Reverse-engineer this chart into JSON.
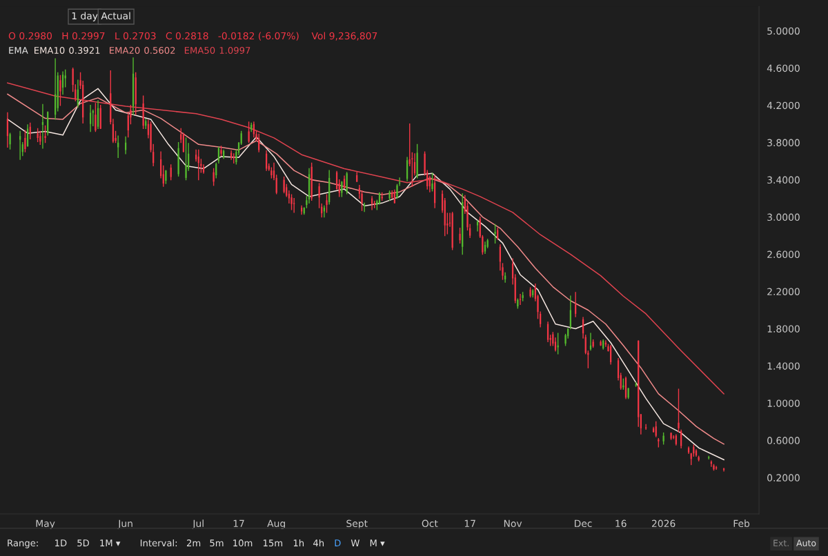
{
  "chart_data": {
    "type": "candlestick",
    "x": [
      "2025-04-16",
      "2025-04-17",
      "2025-04-21",
      "2025-04-22",
      "2025-04-23",
      "2025-04-24",
      "2025-04-25",
      "2025-04-28",
      "2025-04-29",
      "2025-04-30",
      "2025-05-01",
      "2025-05-02",
      "2025-05-05",
      "2025-05-06",
      "2025-05-07",
      "2025-05-08",
      "2025-05-09",
      "2025-05-12",
      "2025-05-13",
      "2025-05-14",
      "2025-05-15",
      "2025-05-16",
      "2025-05-19",
      "2025-05-20",
      "2025-05-21",
      "2025-05-22",
      "2025-05-23",
      "2025-05-27",
      "2025-05-28",
      "2025-05-29",
      "2025-05-30",
      "2025-06-02",
      "2025-06-03",
      "2025-06-04",
      "2025-06-05",
      "2025-06-06",
      "2025-06-09",
      "2025-06-10",
      "2025-06-11",
      "2025-06-12",
      "2025-06-13",
      "2025-06-16",
      "2025-06-17",
      "2025-06-18",
      "2025-06-20",
      "2025-06-23",
      "2025-06-24",
      "2025-06-25",
      "2025-06-26",
      "2025-06-27",
      "2025-06-30",
      "2025-07-01",
      "2025-07-02",
      "2025-07-03",
      "2025-07-07",
      "2025-07-08",
      "2025-07-09",
      "2025-07-10",
      "2025-07-11",
      "2025-07-14",
      "2025-07-15",
      "2025-07-16",
      "2025-07-17",
      "2025-07-18",
      "2025-07-21",
      "2025-07-22",
      "2025-07-23",
      "2025-07-24",
      "2025-07-25",
      "2025-07-28",
      "2025-07-29",
      "2025-07-30",
      "2025-07-31",
      "2025-08-01",
      "2025-08-04",
      "2025-08-05",
      "2025-08-06",
      "2025-08-07",
      "2025-08-08",
      "2025-08-11",
      "2025-08-12",
      "2025-08-13",
      "2025-08-14",
      "2025-08-15",
      "2025-08-18",
      "2025-08-19",
      "2025-08-20",
      "2025-08-21",
      "2025-08-22",
      "2025-08-25",
      "2025-08-26",
      "2025-08-27",
      "2025-08-28",
      "2025-08-29",
      "2025-09-02",
      "2025-09-03",
      "2025-09-04",
      "2025-09-05",
      "2025-09-08",
      "2025-09-09",
      "2025-09-10",
      "2025-09-11",
      "2025-09-12",
      "2025-09-15",
      "2025-09-16",
      "2025-09-17",
      "2025-09-18",
      "2025-09-19",
      "2025-09-22",
      "2025-09-23",
      "2025-09-24",
      "2025-09-25",
      "2025-09-26",
      "2025-09-29",
      "2025-09-30",
      "2025-10-01",
      "2025-10-02",
      "2025-10-03",
      "2025-10-06",
      "2025-10-07",
      "2025-10-08",
      "2025-10-09",
      "2025-10-10",
      "2025-10-13",
      "2025-10-14",
      "2025-10-15",
      "2025-10-16",
      "2025-10-17",
      "2025-10-20",
      "2025-10-21",
      "2025-10-22",
      "2025-10-23",
      "2025-10-24",
      "2025-10-27",
      "2025-10-28",
      "2025-10-29",
      "2025-10-30",
      "2025-10-31",
      "2025-11-03",
      "2025-11-04",
      "2025-11-05",
      "2025-11-06",
      "2025-11-07",
      "2025-11-10",
      "2025-11-11",
      "2025-11-12",
      "2025-11-13",
      "2025-11-14",
      "2025-11-17",
      "2025-11-18",
      "2025-11-19",
      "2025-11-20",
      "2025-11-21",
      "2025-11-24",
      "2025-11-25",
      "2025-11-26",
      "2025-11-28",
      "2025-12-01",
      "2025-12-02",
      "2025-12-03",
      "2025-12-04",
      "2025-12-05",
      "2025-12-08",
      "2025-12-09",
      "2025-12-10",
      "2025-12-11",
      "2025-12-12",
      "2025-12-15",
      "2025-12-16",
      "2025-12-17",
      "2025-12-18",
      "2025-12-19",
      "2025-12-22",
      "2025-12-23",
      "2025-12-24",
      "2025-12-26",
      "2025-12-29",
      "2025-12-30",
      "2025-12-31",
      "2026-01-02",
      "2026-01-05",
      "2026-01-06",
      "2026-01-07",
      "2026-01-08",
      "2026-01-09",
      "2026-01-12",
      "2026-01-13",
      "2026-01-14",
      "2026-01-15",
      "2026-01-16",
      "2026-01-20",
      "2026-01-21",
      "2026-01-22",
      "2026-01-23",
      "2026-01-26"
    ],
    "ohlc": [
      [
        4.05,
        4.12,
        3.75,
        3.87
      ],
      [
        3.78,
        3.9,
        3.73,
        3.89
      ],
      [
        3.83,
        3.92,
        3.62,
        3.87
      ],
      [
        3.7,
        3.8,
        3.66,
        3.78
      ],
      [
        3.85,
        3.93,
        3.7,
        3.73
      ],
      [
        3.76,
        3.99,
        3.76,
        3.95
      ],
      [
        3.97,
        4.01,
        3.84,
        3.89
      ],
      [
        3.9,
        3.95,
        3.81,
        3.85
      ],
      [
        3.87,
        3.92,
        3.78,
        3.81
      ],
      [
        3.99,
        4.21,
        3.74,
        4.02
      ],
      [
        3.87,
        3.98,
        3.8,
        3.85
      ],
      [
        3.9,
        4.13,
        3.88,
        4.13
      ],
      [
        4.1,
        4.7,
        4.05,
        4.32
      ],
      [
        4.17,
        4.55,
        4.14,
        4.52
      ],
      [
        4.47,
        4.52,
        4.2,
        4.35
      ],
      [
        4.39,
        4.56,
        4.32,
        4.53
      ],
      [
        4.49,
        4.58,
        4.4,
        4.52
      ],
      [
        4.59,
        4.6,
        4.35,
        4.42
      ],
      [
        4.37,
        4.42,
        4.25,
        4.27
      ],
      [
        4.2,
        4.47,
        4.18,
        4.37
      ],
      [
        4.47,
        4.55,
        4.38,
        4.41
      ],
      [
        4.42,
        4.46,
        4.01,
        4.07
      ],
      [
        4.0,
        4.2,
        3.92,
        4.12
      ],
      [
        4.12,
        4.15,
        3.98,
        4.14
      ],
      [
        4.1,
        4.22,
        3.92,
        3.93
      ],
      [
        3.97,
        4.25,
        3.95,
        4.17
      ],
      [
        4.17,
        4.2,
        3.95,
        3.95
      ],
      [
        4.33,
        4.57,
        4.0,
        4.02
      ],
      [
        4.0,
        4.05,
        3.8,
        3.81
      ],
      [
        3.85,
        3.92,
        3.8,
        3.82
      ],
      [
        3.75,
        3.87,
        3.64,
        3.8
      ],
      [
        3.72,
        3.86,
        3.68,
        3.8
      ],
      [
        4.09,
        4.12,
        3.86,
        3.93
      ],
      [
        4.15,
        4.2,
        4.0,
        4.07
      ],
      [
        4.19,
        4.71,
        4.1,
        4.54
      ],
      [
        4.5,
        4.55,
        4.1,
        4.21
      ],
      [
        4.22,
        4.3,
        3.95,
        3.98
      ],
      [
        3.98,
        4.05,
        3.95,
        4.03
      ],
      [
        4.0,
        4.04,
        3.85,
        3.88
      ],
      [
        4.0,
        4.02,
        3.7,
        3.72
      ],
      [
        3.7,
        3.78,
        3.55,
        3.58
      ],
      [
        3.62,
        3.7,
        3.42,
        3.44
      ],
      [
        3.46,
        3.55,
        3.33,
        3.36
      ],
      [
        3.39,
        3.5,
        3.36,
        3.5
      ],
      [
        3.53,
        3.56,
        3.4,
        3.43
      ],
      [
        3.46,
        3.8,
        3.44,
        3.74
      ],
      [
        3.89,
        3.95,
        3.8,
        3.83
      ],
      [
        3.89,
        3.9,
        3.7,
        3.7
      ],
      [
        3.42,
        3.85,
        3.4,
        3.56
      ],
      [
        3.52,
        3.79,
        3.5,
        3.68
      ],
      [
        3.67,
        3.72,
        3.6,
        3.62
      ],
      [
        3.65,
        3.72,
        3.4,
        3.58
      ],
      [
        3.57,
        3.62,
        3.48,
        3.55
      ],
      [
        3.54,
        3.56,
        3.47,
        3.48
      ],
      [
        3.48,
        3.52,
        3.34,
        3.38
      ],
      [
        3.45,
        3.58,
        3.42,
        3.57
      ],
      [
        3.6,
        3.75,
        3.58,
        3.74
      ],
      [
        3.72,
        3.76,
        3.66,
        3.68
      ],
      [
        3.64,
        3.72,
        3.63,
        3.71
      ],
      [
        3.69,
        3.71,
        3.62,
        3.64
      ],
      [
        3.65,
        3.68,
        3.58,
        3.63
      ],
      [
        3.59,
        3.72,
        3.57,
        3.7
      ],
      [
        3.69,
        3.8,
        3.67,
        3.8
      ],
      [
        3.79,
        3.92,
        3.78,
        3.9
      ],
      [
        3.92,
        4.02,
        3.8,
        3.81
      ],
      [
        3.94,
        4.01,
        3.92,
        3.99
      ],
      [
        4.0,
        4.02,
        3.86,
        3.89
      ],
      [
        3.89,
        3.92,
        3.82,
        3.83
      ],
      [
        3.85,
        3.89,
        3.7,
        3.72
      ],
      [
        3.68,
        3.71,
        3.5,
        3.52
      ],
      [
        3.55,
        3.57,
        3.5,
        3.51
      ],
      [
        3.5,
        3.53,
        3.42,
        3.45
      ],
      [
        3.5,
        3.58,
        3.4,
        3.42
      ],
      [
        3.42,
        3.45,
        3.25,
        3.26
      ],
      [
        3.4,
        3.43,
        3.26,
        3.27
      ],
      [
        3.32,
        3.35,
        3.22,
        3.23
      ],
      [
        3.25,
        3.28,
        3.15,
        3.2
      ],
      [
        3.21,
        3.24,
        3.08,
        3.14
      ],
      [
        3.15,
        3.2,
        3.05,
        3.14
      ],
      [
        3.1,
        3.12,
        3.03,
        3.06
      ],
      [
        3.04,
        3.1,
        3.03,
        3.1
      ],
      [
        3.13,
        3.22,
        3.1,
        3.18
      ],
      [
        3.19,
        3.52,
        3.15,
        3.46
      ],
      [
        3.54,
        3.58,
        3.18,
        3.2
      ],
      [
        3.33,
        3.36,
        3.1,
        3.21
      ],
      [
        3.11,
        3.14,
        3.0,
        3.04
      ],
      [
        3.06,
        3.12,
        3.0,
        3.1
      ],
      [
        3.18,
        3.24,
        3.05,
        3.13
      ],
      [
        3.16,
        3.5,
        3.14,
        3.42
      ],
      [
        3.48,
        3.49,
        3.3,
        3.3
      ],
      [
        3.36,
        3.4,
        3.22,
        3.26
      ],
      [
        3.26,
        3.38,
        3.22,
        3.38
      ],
      [
        3.41,
        3.44,
        3.31,
        3.31
      ],
      [
        3.27,
        3.48,
        3.25,
        3.47
      ],
      [
        3.45,
        3.48,
        3.38,
        3.38
      ],
      [
        3.31,
        3.34,
        3.2,
        3.25
      ],
      [
        3.25,
        3.28,
        3.07,
        3.15
      ],
      [
        3.12,
        3.15,
        3.06,
        3.13
      ],
      [
        3.2,
        3.22,
        3.08,
        3.14
      ],
      [
        3.15,
        3.17,
        3.1,
        3.13
      ],
      [
        3.13,
        3.18,
        3.08,
        3.17
      ],
      [
        3.15,
        3.26,
        3.14,
        3.26
      ],
      [
        3.22,
        3.26,
        3.18,
        3.2
      ],
      [
        3.2,
        3.28,
        3.18,
        3.27
      ],
      [
        3.26,
        3.28,
        3.2,
        3.21
      ],
      [
        3.27,
        3.29,
        3.15,
        3.15
      ],
      [
        3.21,
        3.35,
        3.2,
        3.34
      ],
      [
        3.36,
        3.42,
        3.34,
        3.37
      ],
      [
        3.41,
        3.64,
        3.39,
        3.61
      ],
      [
        3.62,
        4.0,
        3.55,
        3.57
      ],
      [
        3.63,
        3.69,
        3.33,
        3.62
      ],
      [
        3.59,
        3.68,
        3.45,
        3.47
      ],
      [
        3.43,
        3.78,
        3.42,
        3.69
      ],
      [
        3.68,
        3.7,
        3.45,
        3.47
      ],
      [
        3.48,
        3.5,
        3.3,
        3.33
      ],
      [
        3.42,
        3.44,
        3.27,
        3.33
      ],
      [
        3.3,
        3.47,
        3.28,
        3.36
      ],
      [
        3.37,
        3.45,
        3.1,
        3.15
      ],
      [
        3.25,
        3.28,
        3.05,
        3.07
      ],
      [
        3.18,
        3.2,
        2.8,
        2.91
      ],
      [
        2.93,
        3.04,
        2.82,
        2.91
      ],
      [
        2.94,
        3.04,
        2.9,
        2.93
      ],
      [
        3.04,
        3.05,
        2.65,
        2.67
      ],
      [
        2.82,
        2.88,
        2.72,
        2.75
      ],
      [
        2.68,
        3.25,
        2.6,
        3.16
      ],
      [
        3.2,
        3.23,
        3.04,
        3.06
      ],
      [
        3.12,
        3.15,
        2.86,
        2.89
      ],
      [
        2.88,
        2.92,
        2.78,
        2.8
      ],
      [
        2.91,
        2.96,
        2.85,
        2.95
      ],
      [
        2.98,
        3.0,
        2.78,
        2.79
      ],
      [
        2.79,
        2.8,
        2.6,
        2.62
      ],
      [
        2.63,
        2.73,
        2.61,
        2.7
      ],
      [
        2.68,
        2.76,
        2.67,
        2.75
      ],
      [
        2.82,
        2.92,
        2.72,
        2.84
      ],
      [
        2.86,
        2.88,
        2.76,
        2.77
      ],
      [
        2.68,
        2.7,
        2.43,
        2.52
      ],
      [
        2.46,
        2.5,
        2.33,
        2.37
      ],
      [
        2.33,
        2.4,
        2.3,
        2.37
      ],
      [
        2.5,
        2.55,
        2.28,
        2.34
      ],
      [
        2.35,
        2.38,
        2.08,
        2.1
      ],
      [
        2.04,
        2.12,
        2.02,
        2.11
      ],
      [
        2.12,
        2.17,
        2.06,
        2.11
      ],
      [
        2.13,
        2.19,
        2.1,
        2.16
      ],
      [
        2.22,
        2.24,
        2.14,
        2.15
      ],
      [
        2.16,
        2.22,
        2.14,
        2.21
      ],
      [
        2.25,
        2.28,
        2.1,
        2.12
      ],
      [
        2.15,
        2.16,
        1.91,
        1.98
      ],
      [
        1.96,
        1.98,
        1.82,
        1.85
      ],
      [
        1.85,
        1.87,
        1.66,
        1.68
      ],
      [
        1.7,
        1.73,
        1.62,
        1.68
      ],
      [
        1.74,
        1.76,
        1.62,
        1.64
      ],
      [
        1.66,
        1.7,
        1.56,
        1.57
      ],
      [
        1.6,
        1.75,
        1.53,
        1.62
      ],
      [
        1.64,
        1.74,
        1.62,
        1.73
      ],
      [
        1.72,
        1.8,
        1.7,
        1.8
      ],
      [
        1.82,
        2.15,
        1.8,
        2.0
      ],
      [
        2.06,
        2.19,
        1.93,
        1.96
      ],
      [
        1.9,
        1.92,
        1.7,
        1.75
      ],
      [
        1.71,
        1.73,
        1.53,
        1.54
      ],
      [
        1.54,
        1.56,
        1.38,
        1.52
      ],
      [
        1.58,
        1.75,
        1.57,
        1.62
      ],
      [
        1.66,
        1.68,
        1.6,
        1.61
      ],
      [
        1.66,
        1.67,
        1.62,
        1.62
      ],
      [
        1.59,
        1.68,
        1.58,
        1.67
      ],
      [
        1.65,
        1.67,
        1.61,
        1.63
      ],
      [
        1.61,
        1.63,
        1.56,
        1.56
      ],
      [
        1.61,
        1.62,
        1.42,
        1.44
      ],
      [
        1.46,
        1.48,
        1.25,
        1.27
      ],
      [
        1.3,
        1.32,
        1.15,
        1.16
      ],
      [
        1.17,
        1.26,
        1.15,
        1.19
      ],
      [
        1.27,
        1.28,
        1.05,
        1.06
      ],
      [
        1.06,
        1.16,
        1.05,
        1.16
      ],
      [
        1.19,
        1.22,
        1.18,
        1.2
      ],
      [
        1.67,
        1.67,
        0.75,
        0.85
      ],
      [
        0.88,
        0.88,
        0.67,
        0.73
      ],
      [
        0.74,
        0.77,
        0.72,
        0.73
      ],
      [
        0.73,
        0.74,
        0.69,
        0.69
      ],
      [
        0.75,
        0.8,
        0.64,
        0.65
      ],
      [
        0.61,
        0.62,
        0.53,
        0.59
      ],
      [
        0.59,
        0.68,
        0.56,
        0.65
      ],
      [
        0.68,
        0.68,
        0.61,
        0.62
      ],
      [
        0.64,
        0.65,
        0.62,
        0.63
      ],
      [
        0.65,
        0.66,
        0.55,
        0.56
      ],
      [
        0.79,
        1.15,
        0.69,
        0.73
      ],
      [
        0.7,
        0.71,
        0.52,
        0.54
      ],
      [
        0.52,
        0.53,
        0.46,
        0.47
      ],
      [
        0.46,
        0.46,
        0.34,
        0.4
      ],
      [
        0.53,
        0.55,
        0.43,
        0.46
      ],
      [
        0.49,
        0.5,
        0.43,
        0.44
      ],
      [
        0.42,
        0.43,
        0.38,
        0.39
      ],
      [
        0.41,
        0.43,
        0.4,
        0.42
      ],
      [
        0.37,
        0.38,
        0.32,
        0.35
      ],
      [
        0.33,
        0.34,
        0.28,
        0.29
      ],
      [
        0.31,
        0.32,
        0.29,
        0.3
      ],
      [
        0.298,
        0.2997,
        0.2703,
        0.2818
      ]
    ],
    "series": [
      {
        "type": "line",
        "name": "EMA10",
        "color": "#f5e6e0",
        "x": [
          "2025-04-16",
          "2025-04-24",
          "2025-05-01",
          "2025-05-08",
          "2025-05-15",
          "2025-05-22",
          "2025-05-29",
          "2025-06-05",
          "2025-06-12",
          "2025-06-19",
          "2025-06-26",
          "2025-07-03",
          "2025-07-10",
          "2025-07-17",
          "2025-07-24",
          "2025-07-31",
          "2025-08-07",
          "2025-08-14",
          "2025-08-21",
          "2025-08-28",
          "2025-09-05",
          "2025-09-12",
          "2025-09-19",
          "2025-09-26",
          "2025-10-02",
          "2025-10-09",
          "2025-10-16",
          "2025-10-23",
          "2025-10-30",
          "2025-11-06",
          "2025-11-13",
          "2025-11-20",
          "2025-11-28",
          "2025-12-05",
          "2025-12-12",
          "2025-12-19",
          "2025-12-26",
          "2026-01-02",
          "2026-01-09",
          "2026-01-16",
          "2026-01-26"
        ],
        "values": [
          4.05,
          3.9,
          3.92,
          3.88,
          4.25,
          4.38,
          4.15,
          4.1,
          4.05,
          3.78,
          3.55,
          3.52,
          3.65,
          3.64,
          3.86,
          3.65,
          3.35,
          3.22,
          3.26,
          3.3,
          3.12,
          3.15,
          3.22,
          3.45,
          3.47,
          3.3,
          3.05,
          2.9,
          2.72,
          2.38,
          2.22,
          1.85,
          1.8,
          1.88,
          1.65,
          1.35,
          1.05,
          0.78,
          0.68,
          0.52,
          0.3921
        ]
      },
      {
        "type": "line",
        "name": "EMA20",
        "color": "#f08a8a",
        "x": [
          "2025-04-16",
          "2025-05-01",
          "2025-05-08",
          "2025-05-15",
          "2025-05-22",
          "2025-06-02",
          "2025-06-09",
          "2025-06-16",
          "2025-06-23",
          "2025-07-01",
          "2025-07-10",
          "2025-07-17",
          "2025-07-24",
          "2025-08-01",
          "2025-08-08",
          "2025-08-15",
          "2025-08-22",
          "2025-08-29",
          "2025-09-05",
          "2025-09-12",
          "2025-09-19",
          "2025-09-26",
          "2025-10-01",
          "2025-10-08",
          "2025-10-15",
          "2025-10-22",
          "2025-10-29",
          "2025-11-05",
          "2025-11-12",
          "2025-11-19",
          "2025-11-26",
          "2025-12-03",
          "2025-12-10",
          "2025-12-17",
          "2025-12-24",
          "2025-12-31",
          "2026-01-08",
          "2026-01-15",
          "2026-01-22",
          "2026-01-26"
        ],
        "values": [
          4.32,
          4.06,
          4.05,
          4.22,
          4.28,
          4.12,
          4.15,
          4.06,
          3.93,
          3.78,
          3.75,
          3.72,
          3.82,
          3.68,
          3.5,
          3.4,
          3.37,
          3.32,
          3.27,
          3.24,
          3.27,
          3.36,
          3.42,
          3.35,
          3.2,
          3.0,
          2.88,
          2.68,
          2.45,
          2.25,
          2.1,
          2.0,
          1.85,
          1.62,
          1.38,
          1.1,
          0.92,
          0.75,
          0.62,
          0.5602
        ]
      },
      {
        "type": "line",
        "name": "EMA50",
        "color": "#e0434f",
        "x": [
          "2025-04-16",
          "2025-05-05",
          "2025-06-02",
          "2025-06-30",
          "2025-07-10",
          "2025-07-21",
          "2025-07-31",
          "2025-08-11",
          "2025-08-28",
          "2025-09-22",
          "2025-10-03",
          "2025-10-14",
          "2025-10-21",
          "2025-11-03",
          "2025-11-14",
          "2025-11-26",
          "2025-12-08",
          "2025-12-17",
          "2025-12-26",
          "2026-01-08",
          "2026-01-26"
        ],
        "values": [
          4.44,
          4.3,
          4.19,
          4.11,
          4.05,
          3.96,
          3.85,
          3.67,
          3.52,
          3.37,
          3.41,
          3.3,
          3.22,
          3.05,
          2.81,
          2.6,
          2.37,
          2.15,
          1.96,
          1.59,
          1.0997
        ]
      }
    ],
    "xlim": [
      "2025-04-13",
      "2026-02-09"
    ],
    "xticks": [
      {
        "value": "2025-05-01",
        "label": "May"
      },
      {
        "value": "2025-06-02",
        "label": "Jun"
      },
      {
        "value": "2025-07-01",
        "label": "Jul"
      },
      {
        "value": "2025-07-17",
        "label": "17"
      },
      {
        "value": "2025-08-01",
        "label": "Aug"
      },
      {
        "value": "2025-09-02",
        "label": "Sept"
      },
      {
        "value": "2025-10-01",
        "label": "Oct"
      },
      {
        "value": "2025-10-17",
        "label": "17"
      },
      {
        "value": "2025-11-03",
        "label": "Nov"
      },
      {
        "value": "2025-12-01",
        "label": "Dec"
      },
      {
        "value": "2025-12-16",
        "label": "16"
      },
      {
        "value": "2026-01-02",
        "label": "2026"
      },
      {
        "value": "2026-02-02",
        "label": "Feb"
      }
    ],
    "ylim": [
      -0.19,
      5.26
    ],
    "yticks": [
      {
        "value": 0.2,
        "label": "0.2000"
      },
      {
        "value": 0.6,
        "label": "0.6000"
      },
      {
        "value": 1.0,
        "label": "1.0000"
      },
      {
        "value": 1.4,
        "label": "1.4000"
      },
      {
        "value": 1.8,
        "label": "1.8000"
      },
      {
        "value": 2.2,
        "label": "2.2000"
      },
      {
        "value": 2.6,
        "label": "2.6000"
      },
      {
        "value": 3.0,
        "label": "3.0000"
      },
      {
        "value": 3.4,
        "label": "3.4000"
      },
      {
        "value": 3.8,
        "label": "3.8000"
      },
      {
        "value": 4.2,
        "label": "4.2000"
      },
      {
        "value": 4.6,
        "label": "4.6000"
      },
      {
        "value": 5.0,
        "label": "5.0000"
      }
    ],
    "grid": false,
    "annotations": [
      "1 day",
      "Actual",
      "O 0.2980   H 0.2997   L 0.2703   C 0.2818   -0.0182 (-6.07%)    Vol 9,236,807",
      "EMA",
      "0.3921",
      "0.5602",
      "1.0997",
      "Range:",
      "1D",
      "5D",
      "1M ▾",
      "Interval:",
      "2m",
      "5m",
      "10m",
      "15m",
      "1h",
      "4h",
      "D",
      "W",
      "M ▾",
      "Ext.",
      "Auto"
    ]
  }
}
